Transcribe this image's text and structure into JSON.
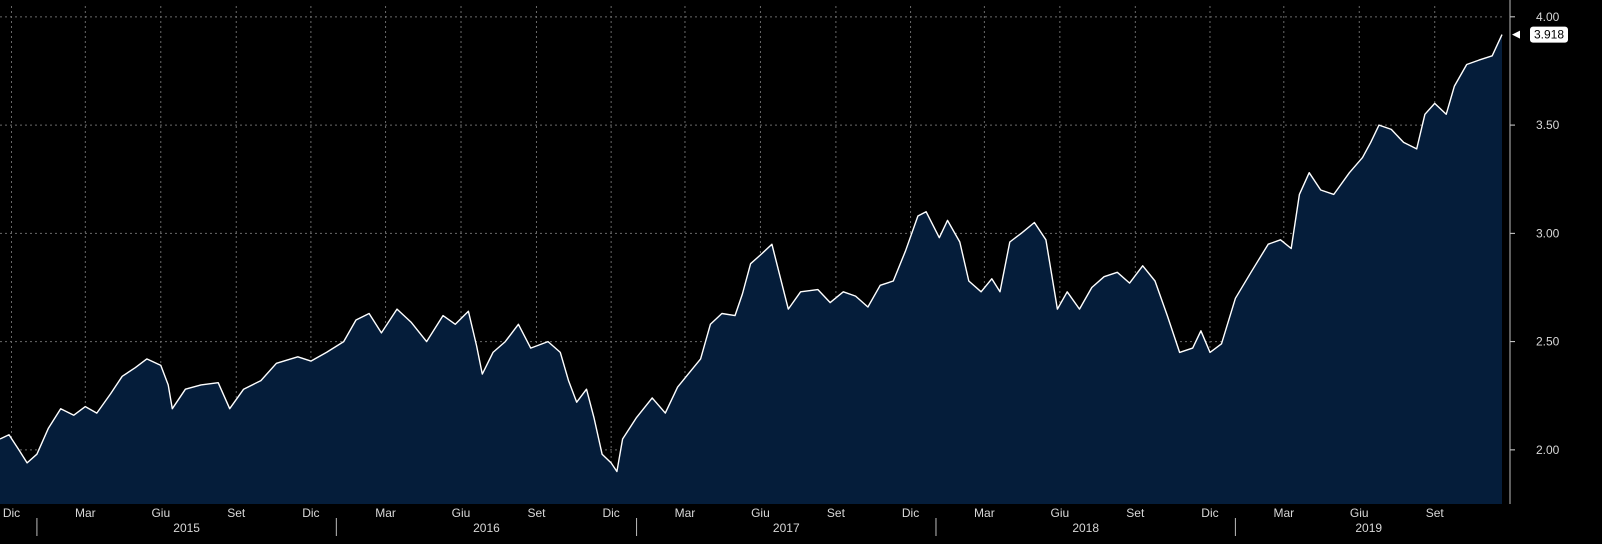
{
  "chart_data": {
    "type": "area",
    "title": "",
    "xlabel": "",
    "ylabel": "",
    "x_range": [
      "2014-11-17",
      "2019-11-22"
    ],
    "ylim": [
      1.75,
      4.05
    ],
    "yticks": [
      2.0,
      2.5,
      3.0,
      3.5,
      4.0
    ],
    "ytick_labels": [
      "2.00",
      "2.50",
      "3.00",
      "3.50",
      "4.00"
    ],
    "month_ticks": [
      {
        "label": "Dic",
        "date": "2014-12-01"
      },
      {
        "label": "Mar",
        "date": "2015-03-01"
      },
      {
        "label": "Giu",
        "date": "2015-06-01"
      },
      {
        "label": "Set",
        "date": "2015-09-01"
      },
      {
        "label": "Dic",
        "date": "2015-12-01"
      },
      {
        "label": "Mar",
        "date": "2016-03-01"
      },
      {
        "label": "Giu",
        "date": "2016-06-01"
      },
      {
        "label": "Set",
        "date": "2016-09-01"
      },
      {
        "label": "Dic",
        "date": "2016-12-01"
      },
      {
        "label": "Mar",
        "date": "2017-03-01"
      },
      {
        "label": "Giu",
        "date": "2017-06-01"
      },
      {
        "label": "Set",
        "date": "2017-09-01"
      },
      {
        "label": "Dic",
        "date": "2017-12-01"
      },
      {
        "label": "Mar",
        "date": "2018-03-01"
      },
      {
        "label": "Giu",
        "date": "2018-06-01"
      },
      {
        "label": "Set",
        "date": "2018-09-01"
      },
      {
        "label": "Dic",
        "date": "2018-12-01"
      },
      {
        "label": "Mar",
        "date": "2019-03-01"
      },
      {
        "label": "Giu",
        "date": "2019-06-01"
      },
      {
        "label": "Set",
        "date": "2019-09-01"
      }
    ],
    "years": [
      {
        "label": "2015",
        "start": "2015-01-01",
        "end": "2016-01-01"
      },
      {
        "label": "2016",
        "start": "2016-01-01",
        "end": "2017-01-01"
      },
      {
        "label": "2017",
        "start": "2017-01-01",
        "end": "2018-01-01"
      },
      {
        "label": "2018",
        "start": "2018-01-01",
        "end": "2019-01-01"
      },
      {
        "label": "2019",
        "start": "2019-01-01",
        "end": "2020-01-01"
      }
    ],
    "grid": true,
    "last_value_label": "3.918",
    "series": [
      {
        "name": "",
        "color": "#ffffff",
        "fill": "#051d3a",
        "points": [
          [
            "2014-11-17",
            2.05
          ],
          [
            "2014-11-28",
            2.07
          ],
          [
            "2014-12-10",
            2.0
          ],
          [
            "2014-12-20",
            1.94
          ],
          [
            "2015-01-01",
            1.98
          ],
          [
            "2015-01-15",
            2.1
          ],
          [
            "2015-01-30",
            2.19
          ],
          [
            "2015-02-15",
            2.16
          ],
          [
            "2015-03-01",
            2.2
          ],
          [
            "2015-03-15",
            2.17
          ],
          [
            "2015-04-01",
            2.26
          ],
          [
            "2015-04-15",
            2.34
          ],
          [
            "2015-05-01",
            2.38
          ],
          [
            "2015-05-15",
            2.42
          ],
          [
            "2015-06-01",
            2.39
          ],
          [
            "2015-06-10",
            2.3
          ],
          [
            "2015-06-15",
            2.19
          ],
          [
            "2015-07-01",
            2.28
          ],
          [
            "2015-07-20",
            2.3
          ],
          [
            "2015-08-10",
            2.31
          ],
          [
            "2015-08-24",
            2.19
          ],
          [
            "2015-09-10",
            2.28
          ],
          [
            "2015-10-01",
            2.32
          ],
          [
            "2015-10-20",
            2.4
          ],
          [
            "2015-11-15",
            2.43
          ],
          [
            "2015-12-01",
            2.41
          ],
          [
            "2015-12-20",
            2.45
          ],
          [
            "2016-01-10",
            2.5
          ],
          [
            "2016-01-25",
            2.6
          ],
          [
            "2016-02-10",
            2.63
          ],
          [
            "2016-02-25",
            2.54
          ],
          [
            "2016-03-15",
            2.65
          ],
          [
            "2016-04-01",
            2.59
          ],
          [
            "2016-04-20",
            2.5
          ],
          [
            "2016-05-10",
            2.62
          ],
          [
            "2016-05-25",
            2.58
          ],
          [
            "2016-06-10",
            2.64
          ],
          [
            "2016-06-20",
            2.48
          ],
          [
            "2016-06-27",
            2.35
          ],
          [
            "2016-07-10",
            2.45
          ],
          [
            "2016-07-25",
            2.5
          ],
          [
            "2016-08-10",
            2.58
          ],
          [
            "2016-08-25",
            2.47
          ],
          [
            "2016-09-15",
            2.5
          ],
          [
            "2016-09-30",
            2.45
          ],
          [
            "2016-10-10",
            2.32
          ],
          [
            "2016-10-20",
            2.22
          ],
          [
            "2016-11-01",
            2.28
          ],
          [
            "2016-11-10",
            2.15
          ],
          [
            "2016-11-20",
            1.98
          ],
          [
            "2016-12-01",
            1.94
          ],
          [
            "2016-12-08",
            1.9
          ],
          [
            "2016-12-15",
            2.05
          ],
          [
            "2017-01-01",
            2.15
          ],
          [
            "2017-01-20",
            2.24
          ],
          [
            "2017-02-05",
            2.17
          ],
          [
            "2017-02-20",
            2.29
          ],
          [
            "2017-03-05",
            2.35
          ],
          [
            "2017-03-20",
            2.42
          ],
          [
            "2017-04-01",
            2.58
          ],
          [
            "2017-04-15",
            2.63
          ],
          [
            "2017-05-01",
            2.62
          ],
          [
            "2017-05-10",
            2.72
          ],
          [
            "2017-05-20",
            2.86
          ],
          [
            "2017-06-01",
            2.9
          ],
          [
            "2017-06-15",
            2.95
          ],
          [
            "2017-06-25",
            2.8
          ],
          [
            "2017-07-05",
            2.65
          ],
          [
            "2017-07-20",
            2.73
          ],
          [
            "2017-08-10",
            2.74
          ],
          [
            "2017-08-25",
            2.68
          ],
          [
            "2017-09-10",
            2.73
          ],
          [
            "2017-09-25",
            2.71
          ],
          [
            "2017-10-10",
            2.66
          ],
          [
            "2017-10-25",
            2.76
          ],
          [
            "2017-11-10",
            2.78
          ],
          [
            "2017-11-25",
            2.92
          ],
          [
            "2017-12-10",
            3.08
          ],
          [
            "2017-12-20",
            3.1
          ],
          [
            "2018-01-05",
            2.98
          ],
          [
            "2018-01-15",
            3.06
          ],
          [
            "2018-01-30",
            2.96
          ],
          [
            "2018-02-10",
            2.78
          ],
          [
            "2018-02-25",
            2.73
          ],
          [
            "2018-03-10",
            2.79
          ],
          [
            "2018-03-20",
            2.73
          ],
          [
            "2018-04-01",
            2.96
          ],
          [
            "2018-04-15",
            3.0
          ],
          [
            "2018-05-01",
            3.05
          ],
          [
            "2018-05-15",
            2.97
          ],
          [
            "2018-05-29",
            2.65
          ],
          [
            "2018-06-10",
            2.73
          ],
          [
            "2018-06-25",
            2.65
          ],
          [
            "2018-07-10",
            2.75
          ],
          [
            "2018-07-25",
            2.8
          ],
          [
            "2018-08-10",
            2.82
          ],
          [
            "2018-08-25",
            2.77
          ],
          [
            "2018-09-10",
            2.85
          ],
          [
            "2018-09-25",
            2.78
          ],
          [
            "2018-10-10",
            2.62
          ],
          [
            "2018-10-25",
            2.45
          ],
          [
            "2018-11-10",
            2.47
          ],
          [
            "2018-11-20",
            2.55
          ],
          [
            "2018-12-01",
            2.45
          ],
          [
            "2018-12-15",
            2.49
          ],
          [
            "2019-01-01",
            2.7
          ],
          [
            "2019-01-20",
            2.82
          ],
          [
            "2019-02-10",
            2.95
          ],
          [
            "2019-02-25",
            2.97
          ],
          [
            "2019-03-10",
            2.93
          ],
          [
            "2019-03-20",
            3.18
          ],
          [
            "2019-04-01",
            3.28
          ],
          [
            "2019-04-15",
            3.2
          ],
          [
            "2019-05-01",
            3.18
          ],
          [
            "2019-05-20",
            3.28
          ],
          [
            "2019-06-05",
            3.35
          ],
          [
            "2019-06-15",
            3.42
          ],
          [
            "2019-06-25",
            3.5
          ],
          [
            "2019-07-10",
            3.48
          ],
          [
            "2019-07-25",
            3.42
          ],
          [
            "2019-08-10",
            3.39
          ],
          [
            "2019-08-20",
            3.55
          ],
          [
            "2019-09-01",
            3.6
          ],
          [
            "2019-09-15",
            3.55
          ],
          [
            "2019-09-25",
            3.68
          ],
          [
            "2019-10-10",
            3.78
          ],
          [
            "2019-10-25",
            3.8
          ],
          [
            "2019-11-10",
            3.82
          ],
          [
            "2019-11-22",
            3.918
          ]
        ]
      }
    ]
  }
}
